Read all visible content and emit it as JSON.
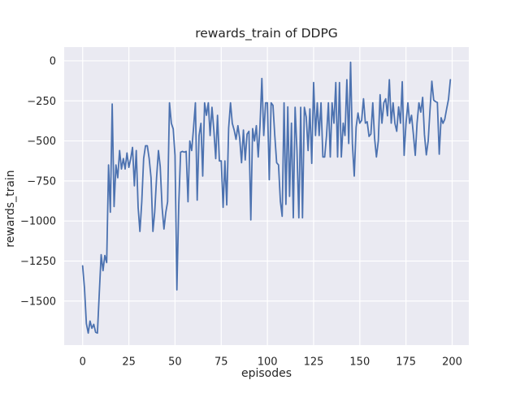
{
  "figure": {
    "background": "#ffffff",
    "plot_background": "#eaeaf2",
    "grid_color": "#ffffff",
    "line_color": "#4c72b0",
    "text_color": "#262626"
  },
  "chart_data": {
    "type": "line",
    "title": "rewards_train of DDPG",
    "xlabel": "episodes",
    "ylabel": "rewards_train",
    "grid": true,
    "legend": false,
    "xlim": [
      -10,
      209
    ],
    "ylim": [
      -1775,
      86
    ],
    "x_ticks": [
      0,
      25,
      50,
      75,
      100,
      125,
      150,
      175,
      200
    ],
    "x_tick_labels": [
      "0",
      "25",
      "50",
      "75",
      "100",
      "125",
      "150",
      "175",
      "200"
    ],
    "y_ticks": [
      0,
      -250,
      -500,
      -750,
      -1000,
      -1250,
      -1500
    ],
    "y_tick_labels": [
      "0",
      "−250",
      "−500",
      "−750",
      "−1000",
      "−1250",
      "−1500"
    ],
    "series": [
      {
        "name": "rewards_train",
        "color": "#4c72b0",
        "x_start": 0,
        "x_step": 1,
        "values": [
          -1280,
          -1420,
          -1640,
          -1700,
          -1625,
          -1670,
          -1645,
          -1695,
          -1700,
          -1450,
          -1210,
          -1310,
          -1215,
          -1260,
          -650,
          -945,
          -270,
          -910,
          -650,
          -730,
          -560,
          -675,
          -610,
          -675,
          -575,
          -665,
          -610,
          -540,
          -780,
          -560,
          -915,
          -1065,
          -880,
          -610,
          -530,
          -530,
          -610,
          -730,
          -1065,
          -945,
          -730,
          -560,
          -660,
          -915,
          -1050,
          -945,
          -880,
          -262,
          -390,
          -425,
          -590,
          -1430,
          -900,
          -570,
          -565,
          -570,
          -565,
          -880,
          -500,
          -560,
          -420,
          -262,
          -870,
          -466,
          -390,
          -720,
          -262,
          -340,
          -262,
          -466,
          -290,
          -432,
          -610,
          -340,
          -625,
          -625,
          -915,
          -625,
          -900,
          -420,
          -262,
          -390,
          -432,
          -490,
          -405,
          -483,
          -636,
          -432,
          -619,
          -457,
          -440,
          -993,
          -423,
          -500,
          -405,
          -600,
          -405,
          -110,
          -466,
          -262,
          -262,
          -742,
          -262,
          -278,
          -466,
          -636,
          -650,
          -879,
          -971,
          -262,
          -896,
          -287,
          -846,
          -389,
          -980,
          -290,
          -560,
          -980,
          -290,
          -980,
          -290,
          -350,
          -560,
          -300,
          -640,
          -135,
          -466,
          -262,
          -466,
          -262,
          -600,
          -600,
          -466,
          -262,
          -600,
          -262,
          -389,
          -135,
          -600,
          -135,
          -600,
          -389,
          -466,
          -118,
          -516,
          -9,
          -516,
          -719,
          -415,
          -326,
          -389,
          -371,
          -237,
          -389,
          -380,
          -472,
          -457,
          -262,
          -481,
          -600,
          -500,
          -211,
          -389,
          -262,
          -237,
          -343,
          -118,
          -389,
          -262,
          -389,
          -440,
          -287,
          -389,
          -130,
          -590,
          -390,
          -262,
          -390,
          -340,
          -460,
          -590,
          -389,
          -262,
          -320,
          -228,
          -460,
          -587,
          -500,
          -310,
          -127,
          -245,
          -255,
          -260,
          -583,
          -355,
          -390,
          -365,
          -300,
          -240,
          -118
        ]
      }
    ]
  }
}
